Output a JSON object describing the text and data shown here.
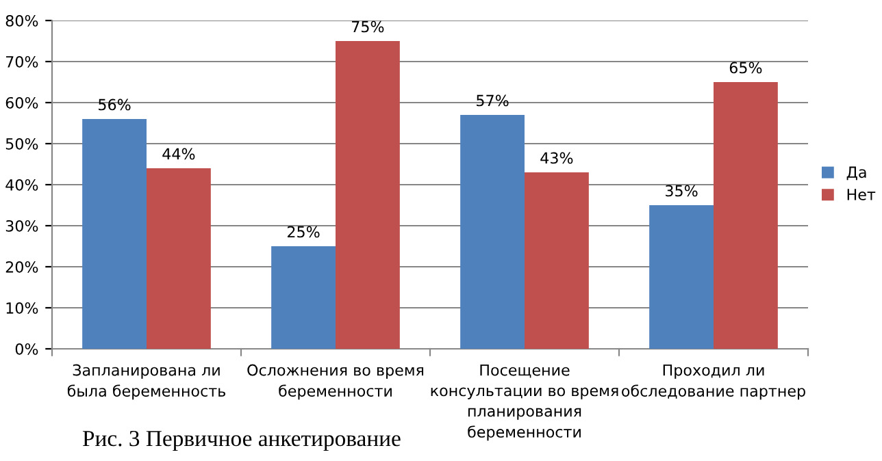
{
  "chart_data": {
    "type": "bar",
    "categories": [
      "Запланирована ли\nбыла беременность",
      "Осложнения во время\nбеременности",
      "Посещение\nконсультации во время\nпланирования\nбеременности",
      "Проходил ли\nобследование партнер"
    ],
    "series": [
      {
        "name": "Да",
        "color": "#4f81bd",
        "values": [
          56,
          25,
          57,
          35
        ],
        "value_labels": [
          "56%",
          "25%",
          "57%",
          "35%"
        ]
      },
      {
        "name": "Нет",
        "color": "#c0504d",
        "values": [
          44,
          75,
          43,
          65
        ],
        "value_labels": [
          "44%",
          "75%",
          "43%",
          "65%"
        ]
      }
    ],
    "ylim": [
      0,
      80
    ],
    "yticks": [
      {
        "value": 0,
        "label": "0%"
      },
      {
        "value": 10,
        "label": "10%"
      },
      {
        "value": 20,
        "label": "20%"
      },
      {
        "value": 30,
        "label": "30%"
      },
      {
        "value": 40,
        "label": "40%"
      },
      {
        "value": 50,
        "label": "50%"
      },
      {
        "value": 60,
        "label": "60%"
      },
      {
        "value": 70,
        "label": "70%"
      },
      {
        "value": 80,
        "label": "80%"
      }
    ],
    "grid": "y",
    "legend": "right",
    "annotations": [
      "Рис. 3 Первичное анкетирование"
    ]
  }
}
